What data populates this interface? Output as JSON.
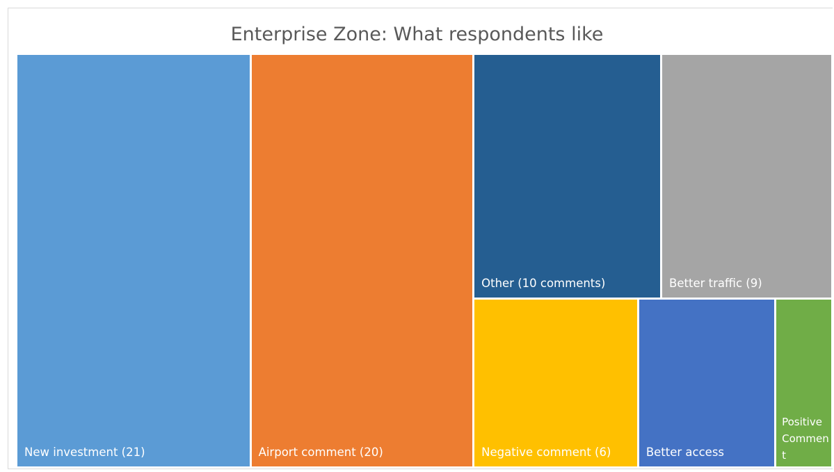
{
  "chart_data": {
    "type": "treemap",
    "title": "Enterprise Zone: What respondents like",
    "items": [
      {
        "label": "New investment (21)",
        "value": 21,
        "color": "#5b9bd5"
      },
      {
        "label": "Airport comment (20)",
        "value": 20,
        "color": "#ed7d31"
      },
      {
        "label": "Other (10 comments)",
        "value": 10,
        "color": "#255e91"
      },
      {
        "label": "Better traffic (9)",
        "value": 9,
        "color": "#a5a5a5"
      },
      {
        "label": "Negative comment (6)",
        "value": 6,
        "color": "#ffc000"
      },
      {
        "label": "Better access",
        "value": 5,
        "color": "#4472c4"
      },
      {
        "label": "Positive Comment",
        "value": 2,
        "color": "#70ad47"
      }
    ]
  }
}
